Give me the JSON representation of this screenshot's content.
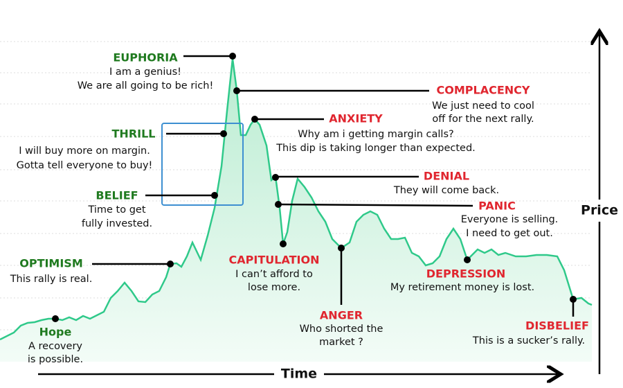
{
  "stages": [
    {
      "name": "EUPHORIA",
      "description": [
        "I am a genius!",
        "We are all going to be rich!"
      ]
    },
    {
      "name": "COMPLACENCY",
      "description": [
        "We just need to cool",
        "off for the next rally."
      ]
    },
    {
      "name": "ANXIETY",
      "description": [
        "Why am i getting margin calls?",
        "This dip is taking longer than expected."
      ]
    },
    {
      "name": "THRILL",
      "description": [
        "I will buy more on margin.",
        "Gotta tell everyone to buy!"
      ]
    },
    {
      "name": "DENIAL",
      "description": [
        "They will come back."
      ]
    },
    {
      "name": "BELIEF",
      "description": [
        "Time to get",
        "fully invested."
      ]
    },
    {
      "name": "PANIC",
      "description": [
        "Everyone is selling.",
        "I need to get out."
      ]
    },
    {
      "name": "CAPITULATION",
      "description": [
        "I can’t afford to",
        "lose more."
      ]
    },
    {
      "name": "OPTIMISM",
      "description": [
        "This rally is real."
      ]
    },
    {
      "name": "ANGER",
      "description": [
        "Who shorted the",
        "market ?"
      ]
    },
    {
      "name": "DEPRESSION",
      "description": [
        "My retirement money is lost."
      ]
    },
    {
      "name": "DISBELIEF",
      "description": [
        "This is a sucker’s rally."
      ]
    },
    {
      "name": "Hope",
      "description": [
        "A recovery",
        "is possible."
      ]
    }
  ],
  "axes": {
    "x": "Time",
    "y": "Price"
  }
}
